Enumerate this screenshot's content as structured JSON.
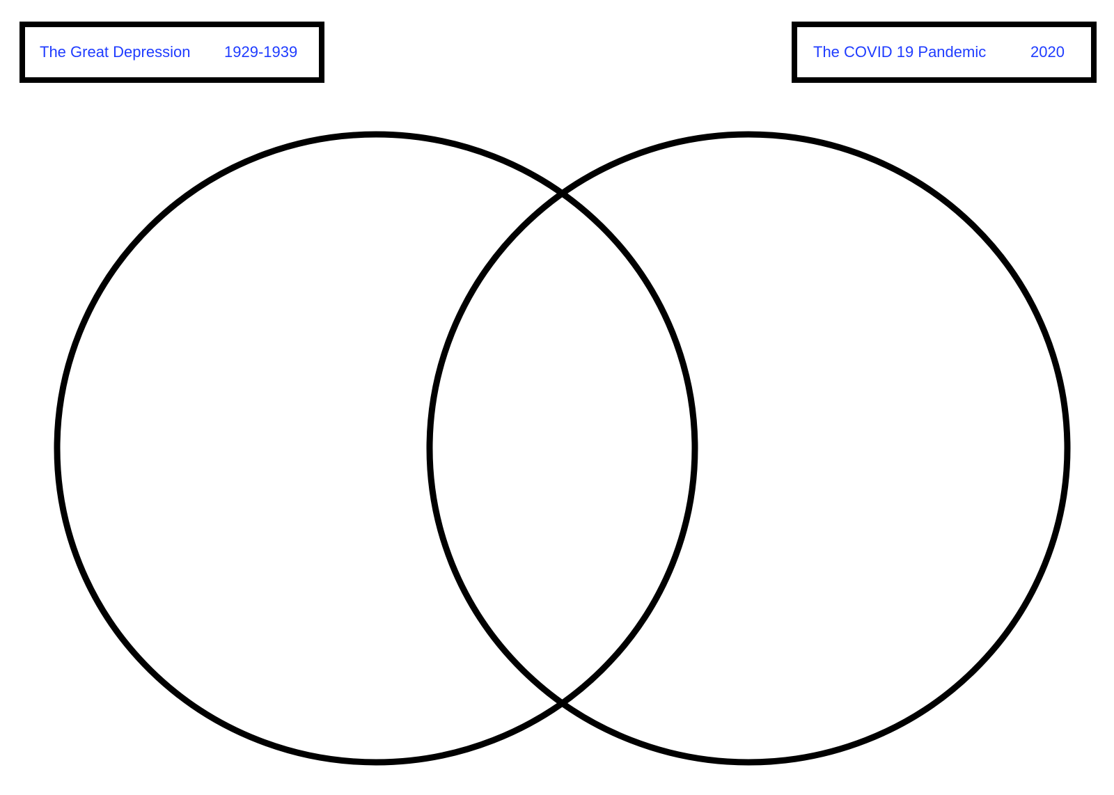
{
  "colors": {
    "label_text": "#1f3cff",
    "outline": "#000000",
    "background": "#ffffff"
  },
  "left_set": {
    "title": "The Great Depression",
    "years": "1929-1939"
  },
  "right_set": {
    "title": "The COVID 19 Pandemic",
    "years": "2020"
  }
}
